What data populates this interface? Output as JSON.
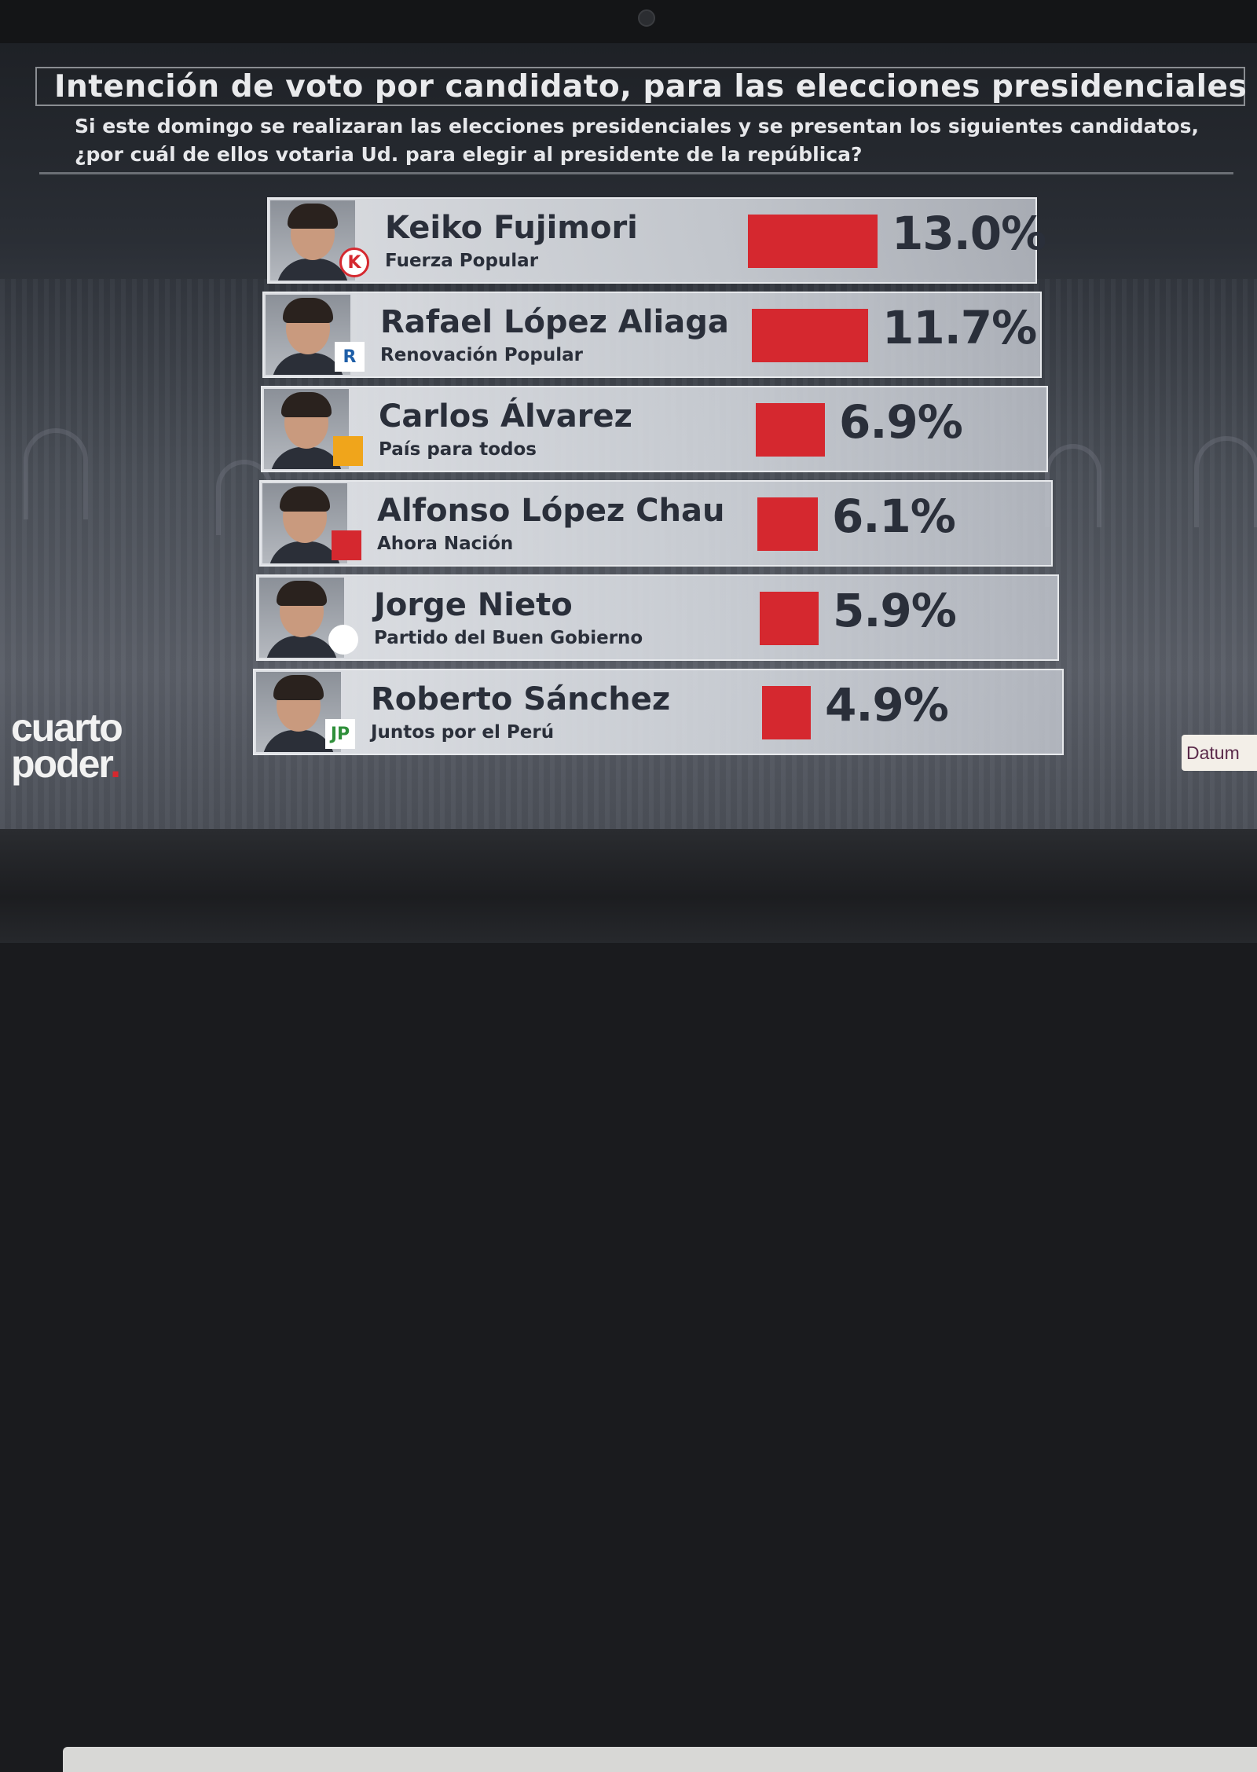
{
  "title": "Intención de voto por candidato, para las elecciones presidenciales",
  "subtitle_line1": "Si este domingo se realizaran las elecciones presidenciales y se presentan los siguientes candidatos,",
  "subtitle_line2": "¿por cuál de ellos votaria Ud. para elegir al presidente de la república?",
  "brand": {
    "line1": "cuarto",
    "line2": "poder",
    "dot": "."
  },
  "pollster": "Datum",
  "colors": {
    "bar": "#d5282f",
    "text": "#2a2f3a"
  },
  "chart_data": {
    "type": "bar",
    "orientation": "horizontal",
    "title": "Intención de voto por candidato, para las elecciones presidenciales",
    "categories": [
      "Keiko Fujimori",
      "Rafael López Aliaga",
      "Carlos Álvarez",
      "Alfonso López Chau",
      "Jorge Nieto",
      "Roberto Sánchez"
    ],
    "parties": [
      "Fuerza Popular",
      "Renovación Popular",
      "País para todos",
      "Ahora Nación",
      "Partido del Buen Gobierno",
      "Juntos por el  Perú"
    ],
    "values": [
      13.0,
      11.7,
      6.9,
      6.1,
      5.9,
      4.9
    ],
    "value_labels": [
      "13.0%",
      "11.7%",
      "6.9%",
      "6.1%",
      "5.9%",
      "4.9%"
    ],
    "party_logos": [
      {
        "icon": "k-party-logo",
        "text": "K",
        "bg": "#ffffff",
        "fg": "#d5282f"
      },
      {
        "icon": "r-party-logo",
        "text": "R",
        "bg": "#ffffff",
        "fg": "#1f5fa8"
      },
      {
        "icon": "pais-para-todos-logo",
        "text": "",
        "bg": "#f0a51b",
        "fg": "#1a1a1a"
      },
      {
        "icon": "ahora-nacion-logo",
        "text": "",
        "bg": "#d5282f",
        "fg": "#ffffff"
      },
      {
        "icon": "sun-logo",
        "text": "",
        "bg": "#ffffff",
        "fg": "#e0561f"
      },
      {
        "icon": "jp-party-logo",
        "text": "JP",
        "bg": "#ffffff",
        "fg": "#2f8f3a"
      }
    ]
  }
}
